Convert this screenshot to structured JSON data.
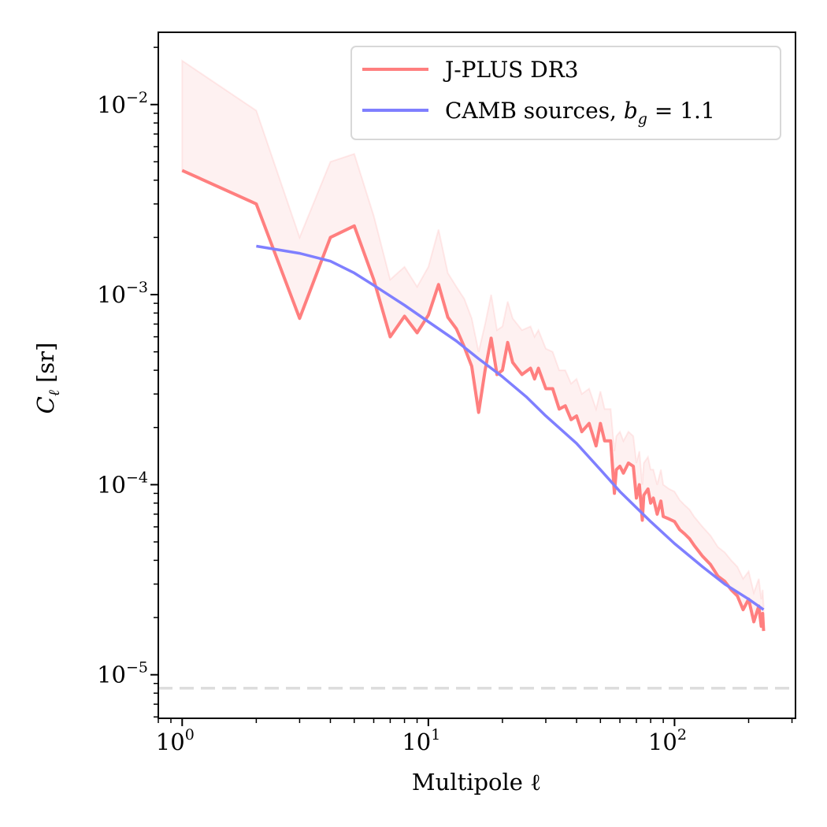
{
  "chart_data": {
    "type": "line",
    "xscale": "log",
    "yscale": "log",
    "xlim": [
      0.8,
      310
    ],
    "ylim": [
      5.9e-06,
      0.024
    ],
    "xlabel": "Multipole ℓ",
    "ylabel_main": "C",
    "ylabel_sub": "ℓ",
    "ylabel_unit": " [sr]",
    "x_tick_labels": [
      {
        "value": 1,
        "base": "10",
        "exp": "0"
      },
      {
        "value": 10,
        "base": "10",
        "exp": "1"
      },
      {
        "value": 100,
        "base": "10",
        "exp": "2"
      }
    ],
    "y_tick_labels": [
      {
        "value": 1e-05,
        "base": "10",
        "exp": "−5"
      },
      {
        "value": 0.0001,
        "base": "10",
        "exp": "−4"
      },
      {
        "value": 0.001,
        "base": "10",
        "exp": "−3"
      },
      {
        "value": 0.01,
        "base": "10",
        "exp": "−2"
      }
    ],
    "noise_level": 8.5e-06,
    "series": [
      {
        "name": "J-PLUS DR3",
        "color": "#ff7f7f",
        "band_color": "#fde8e8",
        "x": [
          1,
          2,
          3,
          4,
          5,
          6,
          7,
          8,
          9,
          10,
          11,
          12,
          13,
          14,
          15,
          16,
          17,
          18,
          19,
          20,
          21,
          22,
          24,
          26,
          27,
          28,
          30,
          32,
          34,
          36,
          38,
          40,
          42,
          45,
          48,
          50,
          52,
          55,
          57,
          58,
          60,
          62,
          65,
          68,
          70,
          72,
          74,
          75,
          78,
          80,
          82,
          85,
          88,
          90,
          95,
          100,
          105,
          110,
          115,
          120,
          130,
          140,
          150,
          160,
          170,
          180,
          190,
          200,
          210,
          220,
          225,
          228,
          230
        ],
        "values": [
          0.0045,
          0.003,
          0.00075,
          0.002,
          0.0023,
          0.0012,
          0.0006,
          0.00077,
          0.00063,
          0.00078,
          0.00113,
          0.00076,
          0.00066,
          0.00053,
          0.00042,
          0.00024,
          0.0004,
          0.00059,
          0.00038,
          0.0004,
          0.00056,
          0.00044,
          0.00038,
          0.00041,
          0.00036,
          0.00041,
          0.00032,
          0.00032,
          0.00025,
          0.00026,
          0.00022,
          0.00023,
          0.00019,
          0.00021,
          0.00016,
          0.00021,
          0.00017,
          0.00017,
          9e-05,
          0.00012,
          0.000125,
          0.000115,
          0.00013,
          0.000125,
          8.5e-05,
          0.0001,
          6.5e-05,
          8.8e-05,
          9.5e-05,
          8e-05,
          8.5e-05,
          7e-05,
          8.2e-05,
          6.8e-05,
          6.6e-05,
          6.4e-05,
          5.8e-05,
          5.5e-05,
          5.2e-05,
          4.8e-05,
          4.2e-05,
          3.8e-05,
          3.3e-05,
          3.1e-05,
          2.8e-05,
          2.6e-05,
          2.2e-05,
          2.5e-05,
          1.9e-05,
          2.3e-05,
          1.8e-05,
          2.1e-05,
          1.7e-05
        ],
        "upper": [
          0.017,
          0.0093,
          0.002,
          0.005,
          0.0055,
          0.0026,
          0.0012,
          0.0014,
          0.0011,
          0.0014,
          0.0022,
          0.0013,
          0.0011,
          0.00095,
          0.00075,
          0.0005,
          0.0007,
          0.001,
          0.00065,
          0.00068,
          0.00092,
          0.00075,
          0.00065,
          0.00068,
          0.0006,
          0.00065,
          0.00052,
          0.0005,
          0.0004,
          0.0004,
          0.00034,
          0.00036,
          0.0003,
          0.00032,
          0.00025,
          0.00031,
          0.00025,
          0.00025,
          0.00015,
          0.00018,
          0.00019,
          0.00017,
          0.00019,
          0.00018,
          0.00013,
          0.00015,
          0.0001,
          0.00013,
          0.00014,
          0.00012,
          0.00012,
          0.0001,
          0.00012,
          0.0001,
          9.5e-05,
          9.2e-05,
          8.3e-05,
          7.8e-05,
          7.4e-05,
          6.8e-05,
          6e-05,
          5.4e-05,
          4.7e-05,
          4.4e-05,
          4e-05,
          3.7e-05,
          3.2e-05,
          3.5e-05,
          2.7e-05,
          3.2e-05,
          2.5e-05,
          2.8e-05,
          2.3e-05
        ]
      },
      {
        "name": "CAMB sources, ",
        "math_label": "b_g = 1.1",
        "math_base": "b",
        "math_sub": "g",
        "math_rest": " = 1.1",
        "color": "#7f7fff",
        "x": [
          2,
          3,
          4,
          5,
          6,
          8,
          10,
          13,
          16,
          20,
          25,
          30,
          40,
          50,
          60,
          80,
          100,
          130,
          160,
          200,
          230
        ],
        "values": [
          0.0018,
          0.00165,
          0.0015,
          0.0013,
          0.00112,
          0.00088,
          0.00072,
          0.00057,
          0.00046,
          0.00037,
          0.00029,
          0.00023,
          0.000165,
          0.00012,
          9.2e-05,
          6.4e-05,
          4.9e-05,
          3.7e-05,
          3e-05,
          2.5e-05,
          2.2e-05
        ]
      }
    ]
  }
}
